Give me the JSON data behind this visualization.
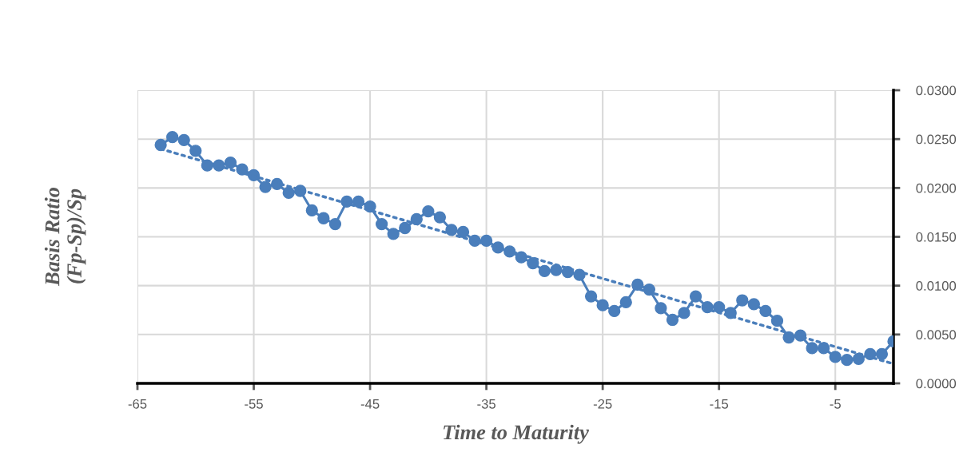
{
  "chart_data": {
    "type": "line",
    "xlabel": "Time to Maturity",
    "ylabel": "Basis Ratio\n(Fp-Sp)/Sp",
    "xlim": [
      -65,
      0
    ],
    "xticks": [
      -65,
      -55,
      -45,
      -35,
      -25,
      -15,
      -5
    ],
    "ylim": [
      0,
      0.03
    ],
    "yticks": [
      {
        "value": 0,
        "label": "0.0000"
      },
      {
        "value": 0.005,
        "label": "0.0050"
      },
      {
        "value": 0.01,
        "label": "0.0100"
      },
      {
        "value": 0.015,
        "label": "0.0150"
      },
      {
        "value": 0.02,
        "label": "0.0200"
      },
      {
        "value": 0.025,
        "label": "0.0250"
      },
      {
        "value": 0.03,
        "label": "0.0300"
      }
    ],
    "grid": true,
    "legend": false,
    "series": [
      {
        "color": "#4a7ebb",
        "marker": "circle",
        "line_style": "solid",
        "x": [
          -63,
          -62,
          -61,
          -60,
          -59,
          -58,
          -57,
          -56,
          -55,
          -54,
          -53,
          -52,
          -51,
          -50,
          -49,
          -48,
          -47,
          -46,
          -45,
          -44,
          -43,
          -42,
          -41,
          -40,
          -39,
          -38,
          -37,
          -36,
          -35,
          -34,
          -33,
          -32,
          -31,
          -30,
          -29,
          -28,
          -27,
          -26,
          -25,
          -24,
          -23,
          -22,
          -21,
          -20,
          -19,
          -18,
          -17,
          -16,
          -15,
          -14,
          -13,
          -12,
          -11,
          -10,
          -9,
          -8,
          -7,
          -6,
          -5,
          -4,
          -3,
          -2,
          -1,
          0
        ],
        "values": [
          0.0244,
          0.0252,
          0.0249,
          0.0238,
          0.0223,
          0.0223,
          0.0226,
          0.0219,
          0.0213,
          0.0201,
          0.0204,
          0.0195,
          0.0197,
          0.0177,
          0.0169,
          0.0163,
          0.0186,
          0.0186,
          0.0181,
          0.0163,
          0.0153,
          0.0159,
          0.0168,
          0.0176,
          0.017,
          0.0157,
          0.0155,
          0.0146,
          0.0146,
          0.0139,
          0.0135,
          0.0129,
          0.0123,
          0.0115,
          0.0116,
          0.0114,
          0.0111,
          0.0089,
          0.008,
          0.0074,
          0.0083,
          0.0101,
          0.0096,
          0.0077,
          0.0065,
          0.0072,
          0.0089,
          0.0078,
          0.0078,
          0.0072,
          0.0085,
          0.0081,
          0.0074,
          0.0064,
          0.0047,
          0.0049,
          0.0036,
          0.0036,
          0.0027,
          0.0024,
          0.0025,
          0.003,
          0.003,
          0.0043
        ]
      },
      {
        "type": "line",
        "color": "#4a7ebb",
        "marker": "none",
        "line_style": "dotted",
        "x": [
          -63,
          0
        ],
        "values": [
          0.024,
          0.002
        ]
      }
    ]
  }
}
